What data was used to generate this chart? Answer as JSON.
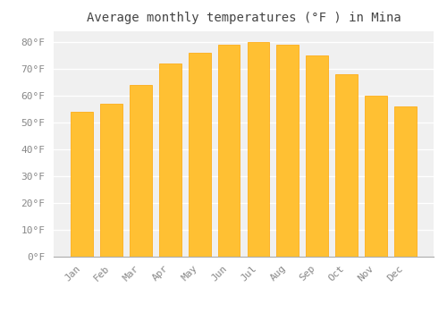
{
  "title": "Average monthly temperatures (°F ) in Mina",
  "months": [
    "Jan",
    "Feb",
    "Mar",
    "Apr",
    "May",
    "Jun",
    "Jul",
    "Aug",
    "Sep",
    "Oct",
    "Nov",
    "Dec"
  ],
  "values": [
    54,
    57,
    64,
    72,
    76,
    79,
    80,
    79,
    75,
    68,
    60,
    56
  ],
  "bar_color_face": "#FFC033",
  "bar_color_edge": "#FFA500",
  "ylim": [
    0,
    84
  ],
  "yticks": [
    0,
    10,
    20,
    30,
    40,
    50,
    60,
    70,
    80
  ],
  "ytick_labels": [
    "0°F",
    "10°F",
    "20°F",
    "30°F",
    "40°F",
    "50°F",
    "60°F",
    "70°F",
    "80°F"
  ],
  "background_color": "#FFFFFF",
  "plot_bg_color": "#F0F0F0",
  "grid_color": "#FFFFFF",
  "title_fontsize": 10,
  "tick_fontsize": 8,
  "tick_color": "#888888",
  "title_color": "#444444",
  "bar_width": 0.75
}
